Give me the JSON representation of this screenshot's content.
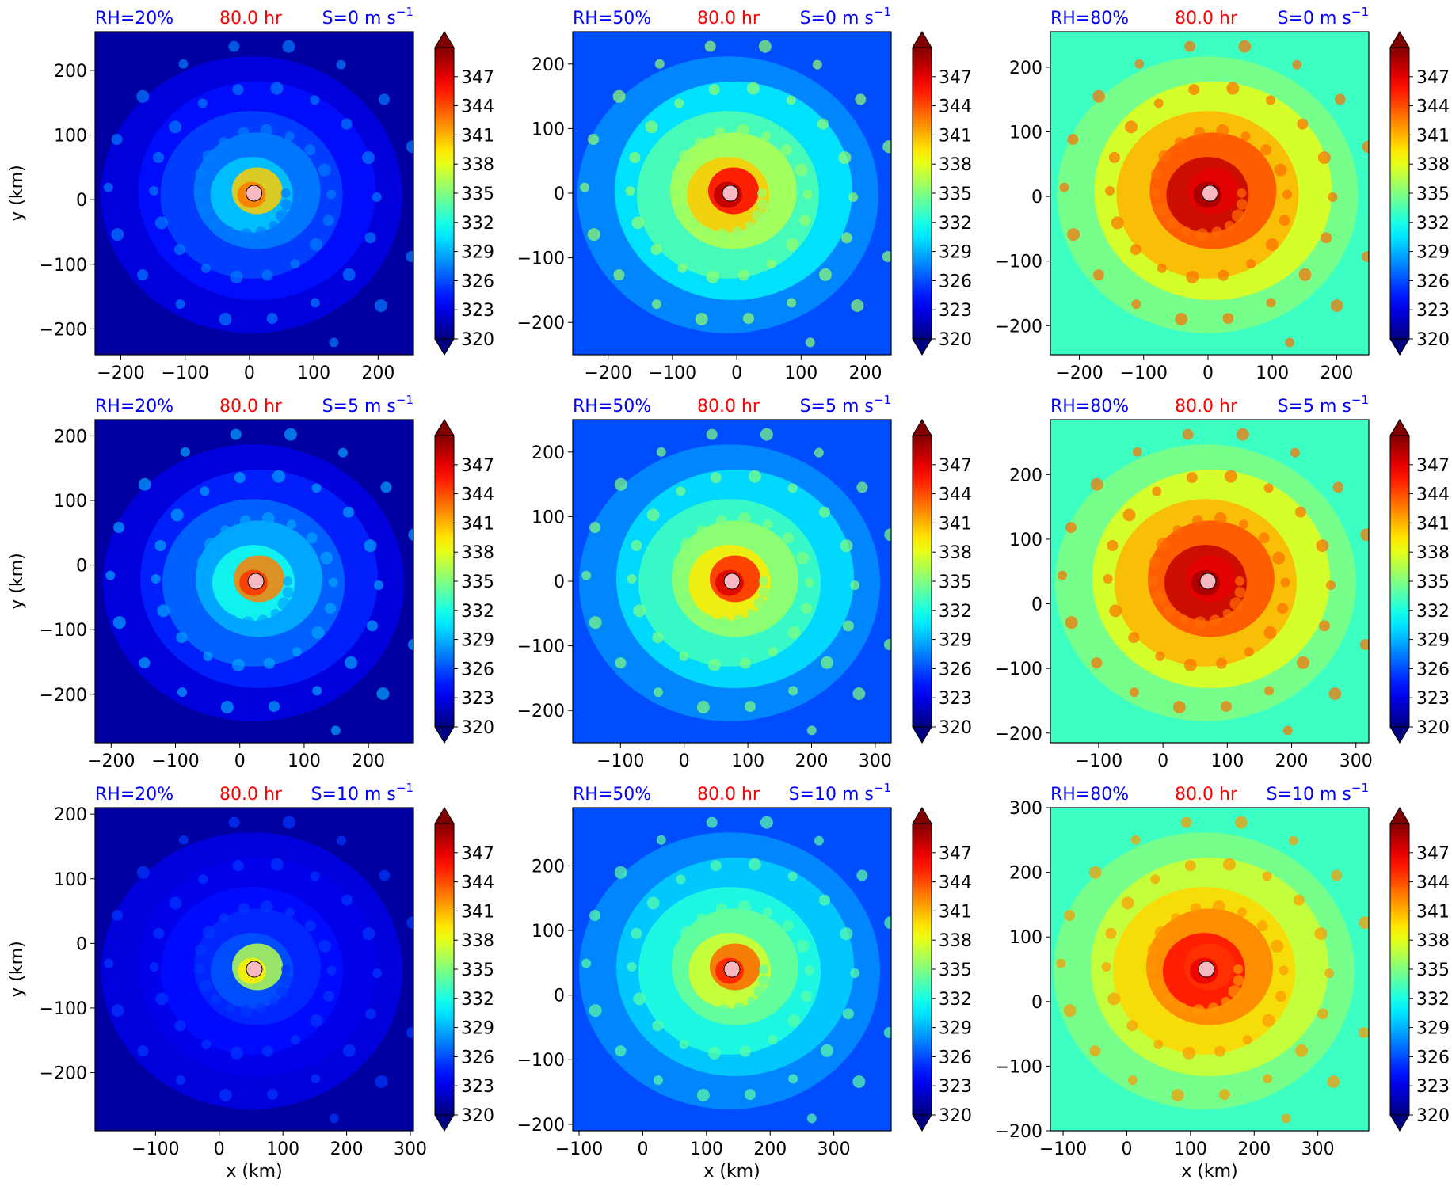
{
  "figure": {
    "colors": {
      "rh": "#0000ff",
      "time": "#ff0000",
      "shear": "#0000ff",
      "center_marker": "#f7b8c2"
    },
    "colormap": "jet",
    "colorbar": {
      "min": 320,
      "max": 350,
      "ticks": [
        "347",
        "344",
        "341",
        "338",
        "335",
        "332",
        "329",
        "326",
        "323",
        "320"
      ],
      "extend": "both"
    }
  },
  "chart_data": [
    {
      "type": "heatmap",
      "rh": "RH=20%",
      "time": "80.0 hr",
      "shear": "S=0 m s",
      "shear_exp": "−1",
      "xlabel": "",
      "ylabel": "y (km)",
      "xticks": [
        -200,
        -100,
        0,
        100,
        200
      ],
      "xtick_labels": [
        "−200",
        "−100",
        "0",
        "100",
        "200"
      ],
      "yticks": [
        200,
        100,
        0,
        -100,
        -200
      ],
      "ytick_labels": [
        "200",
        "100",
        "0",
        "−100",
        "−200"
      ],
      "xlim": [
        -240,
        255
      ],
      "ylim": [
        -240,
        260
      ],
      "center": [
        7,
        10
      ],
      "pattern": "dry",
      "intensity": 0.55
    },
    {
      "type": "heatmap",
      "rh": "RH=50%",
      "time": "80.0 hr",
      "shear": "S=0 m s",
      "shear_exp": "−1",
      "xlabel": "",
      "ylabel": "",
      "xticks": [
        -200,
        -100,
        0,
        100,
        200
      ],
      "xtick_labels": [
        "−200",
        "−100",
        "0",
        "100",
        "200"
      ],
      "yticks": [
        200,
        100,
        0,
        -100,
        -200
      ],
      "ytick_labels": [
        "200",
        "100",
        "0",
        "−100",
        "−200"
      ],
      "xlim": [
        -255,
        240
      ],
      "ylim": [
        -250,
        250
      ],
      "center": [
        -10,
        0
      ],
      "pattern": "mid",
      "intensity": 0.95
    },
    {
      "type": "heatmap",
      "rh": "RH=80%",
      "time": "80.0 hr",
      "shear": "S=0 m s",
      "shear_exp": "−1",
      "xlabel": "",
      "ylabel": "",
      "xticks": [
        -200,
        -100,
        0,
        100,
        200
      ],
      "xtick_labels": [
        "−200",
        "−100",
        "0",
        "100",
        "200"
      ],
      "yticks": [
        200,
        100,
        0,
        -100,
        -200
      ],
      "ytick_labels": [
        "200",
        "100",
        "0",
        "−100",
        "−200"
      ],
      "xlim": [
        -245,
        250
      ],
      "ylim": [
        -245,
        255
      ],
      "center": [
        3,
        5
      ],
      "pattern": "moist",
      "intensity": 1.0
    },
    {
      "type": "heatmap",
      "rh": "RH=20%",
      "time": "80.0 hr",
      "shear": "S=5 m s",
      "shear_exp": "−1",
      "xlabel": "",
      "ylabel": "y (km)",
      "xticks": [
        -200,
        -100,
        0,
        100,
        200
      ],
      "xtick_labels": [
        "−200",
        "−100",
        "0",
        "100",
        "200"
      ],
      "yticks": [
        200,
        100,
        0,
        -100,
        -200
      ],
      "ytick_labels": [
        "200",
        "100",
        "0",
        "−100",
        "−200"
      ],
      "xlim": [
        -225,
        270
      ],
      "ylim": [
        -275,
        225
      ],
      "center": [
        25,
        -25
      ],
      "pattern": "dry",
      "intensity": 0.7
    },
    {
      "type": "heatmap",
      "rh": "RH=50%",
      "time": "80.0 hr",
      "shear": "S=5 m s",
      "shear_exp": "−1",
      "xlabel": "",
      "ylabel": "",
      "xticks": [
        -100,
        0,
        100,
        200,
        300
      ],
      "xtick_labels": [
        "−100",
        "0",
        "100",
        "200",
        "300"
      ],
      "yticks": [
        200,
        100,
        0,
        -100,
        -200
      ],
      "ytick_labels": [
        "200",
        "100",
        "0",
        "−100",
        "−200"
      ],
      "xlim": [
        -175,
        325
      ],
      "ylim": [
        -250,
        250
      ],
      "center": [
        75,
        0
      ],
      "pattern": "mid",
      "intensity": 0.88
    },
    {
      "type": "heatmap",
      "rh": "RH=80%",
      "time": "80.0 hr",
      "shear": "S=5 m s",
      "shear_exp": "−1",
      "xlabel": "",
      "ylabel": "",
      "xticks": [
        -100,
        0,
        100,
        200,
        300
      ],
      "xtick_labels": [
        "−100",
        "0",
        "100",
        "200",
        "300"
      ],
      "yticks": [
        200,
        100,
        0,
        -100,
        -200
      ],
      "ytick_labels": [
        "200",
        "100",
        "0",
        "−100",
        "−200"
      ],
      "xlim": [
        -175,
        320
      ],
      "ylim": [
        -215,
        285
      ],
      "center": [
        70,
        35
      ],
      "pattern": "moist",
      "intensity": 1.0
    },
    {
      "type": "heatmap",
      "rh": "RH=20%",
      "time": "80.0 hr",
      "shear": "S=10 m s",
      "shear_exp": "−1",
      "xlabel": "x (km)",
      "ylabel": "y (km)",
      "xticks": [
        -100,
        0,
        100,
        200,
        300
      ],
      "xtick_labels": [
        "−100",
        "0",
        "100",
        "200",
        "300"
      ],
      "yticks": [
        200,
        100,
        0,
        -100,
        -200
      ],
      "ytick_labels": [
        "200",
        "100",
        "0",
        "−100",
        "−200"
      ],
      "xlim": [
        -195,
        305
      ],
      "ylim": [
        -290,
        210
      ],
      "center": [
        55,
        -40
      ],
      "pattern": "dry",
      "intensity": 0.3
    },
    {
      "type": "heatmap",
      "rh": "RH=50%",
      "time": "80.0 hr",
      "shear": "S=10 m s",
      "shear_exp": "−1",
      "xlabel": "x (km)",
      "ylabel": "",
      "xticks": [
        -100,
        0,
        100,
        200,
        300
      ],
      "xtick_labels": [
        "−100",
        "0",
        "100",
        "200",
        "300"
      ],
      "yticks": [
        200,
        100,
        0,
        -100,
        -200
      ],
      "ytick_labels": [
        "200",
        "100",
        "0",
        "−100",
        "−200"
      ],
      "xlim": [
        -110,
        390
      ],
      "ylim": [
        -210,
        290
      ],
      "center": [
        140,
        40
      ],
      "pattern": "mid",
      "intensity": 0.75
    },
    {
      "type": "heatmap",
      "rh": "RH=80%",
      "time": "80.0 hr",
      "shear": "S=10 m s",
      "shear_exp": "−1",
      "xlabel": "x (km)",
      "ylabel": "",
      "xticks": [
        -100,
        0,
        100,
        200,
        300
      ],
      "xtick_labels": [
        "−100",
        "0",
        "100",
        "200",
        "300"
      ],
      "yticks": [
        300,
        200,
        100,
        0,
        -100,
        -200
      ],
      "ytick_labels": [
        "300",
        "200",
        "100",
        "0",
        "−100",
        "−200"
      ],
      "xlim": [
        -120,
        380
      ],
      "ylim": [
        -200,
        300
      ],
      "center": [
        125,
        50
      ],
      "pattern": "moist",
      "intensity": 0.85
    }
  ]
}
